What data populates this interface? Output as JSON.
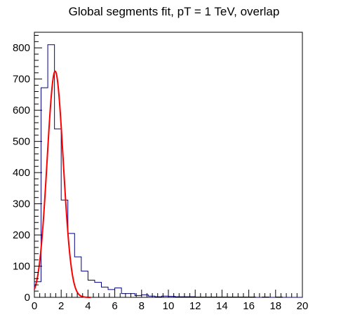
{
  "chart_data": {
    "type": "histogram",
    "title": "Global segments fit, pT = 1 TeV, overlap",
    "xlabel": "",
    "ylabel": "",
    "xlim": [
      0,
      20
    ],
    "ylim": [
      0,
      850
    ],
    "x_tick_labels": [
      "0",
      "2",
      "4",
      "6",
      "8",
      "10",
      "12",
      "14",
      "16",
      "18",
      "20"
    ],
    "y_tick_labels": [
      "0",
      "100",
      "200",
      "300",
      "400",
      "500",
      "600",
      "700",
      "800"
    ],
    "bin_width": 0.5,
    "bins": [
      {
        "x0": 0.0,
        "value": 50
      },
      {
        "x0": 0.5,
        "value": 672
      },
      {
        "x0": 1.0,
        "value": 810
      },
      {
        "x0": 1.5,
        "value": 540
      },
      {
        "x0": 2.0,
        "value": 312
      },
      {
        "x0": 2.5,
        "value": 205
      },
      {
        "x0": 3.0,
        "value": 130
      },
      {
        "x0": 3.5,
        "value": 84
      },
      {
        "x0": 4.0,
        "value": 55
      },
      {
        "x0": 4.5,
        "value": 48
      },
      {
        "x0": 5.0,
        "value": 33
      },
      {
        "x0": 5.5,
        "value": 25
      },
      {
        "x0": 6.0,
        "value": 30
      },
      {
        "x0": 6.5,
        "value": 12
      },
      {
        "x0": 7.0,
        "value": 12
      },
      {
        "x0": 7.5,
        "value": 6
      },
      {
        "x0": 8.0,
        "value": 8
      },
      {
        "x0": 8.5,
        "value": 4
      },
      {
        "x0": 9.0,
        "value": 2
      },
      {
        "x0": 9.5,
        "value": 4
      },
      {
        "x0": 10.0,
        "value": 3
      },
      {
        "x0": 10.5,
        "value": 2
      },
      {
        "x0": 11.0,
        "value": 2
      },
      {
        "x0": 11.5,
        "value": 2
      },
      {
        "x0": 12.0,
        "value": 1
      },
      {
        "x0": 12.5,
        "value": 1
      },
      {
        "x0": 13.0,
        "value": 1
      },
      {
        "x0": 13.5,
        "value": 1
      },
      {
        "x0": 14.0,
        "value": 1
      },
      {
        "x0": 14.5,
        "value": 1
      },
      {
        "x0": 15.0,
        "value": 1
      },
      {
        "x0": 15.5,
        "value": 1
      },
      {
        "x0": 16.0,
        "value": 1
      },
      {
        "x0": 16.5,
        "value": 0
      },
      {
        "x0": 17.0,
        "value": 1
      },
      {
        "x0": 17.5,
        "value": 0
      },
      {
        "x0": 18.0,
        "value": 1
      },
      {
        "x0": 18.5,
        "value": 0
      },
      {
        "x0": 19.0,
        "value": 0
      },
      {
        "x0": 19.5,
        "value": 0
      }
    ],
    "fit": {
      "type": "gaussian",
      "amplitude": 725,
      "mean": 1.55,
      "sigma": 0.6,
      "x_range": [
        0.0,
        4.2
      ],
      "color": "#ff0000"
    },
    "histogram_color": "#000080",
    "grid": false,
    "legend": "none"
  }
}
